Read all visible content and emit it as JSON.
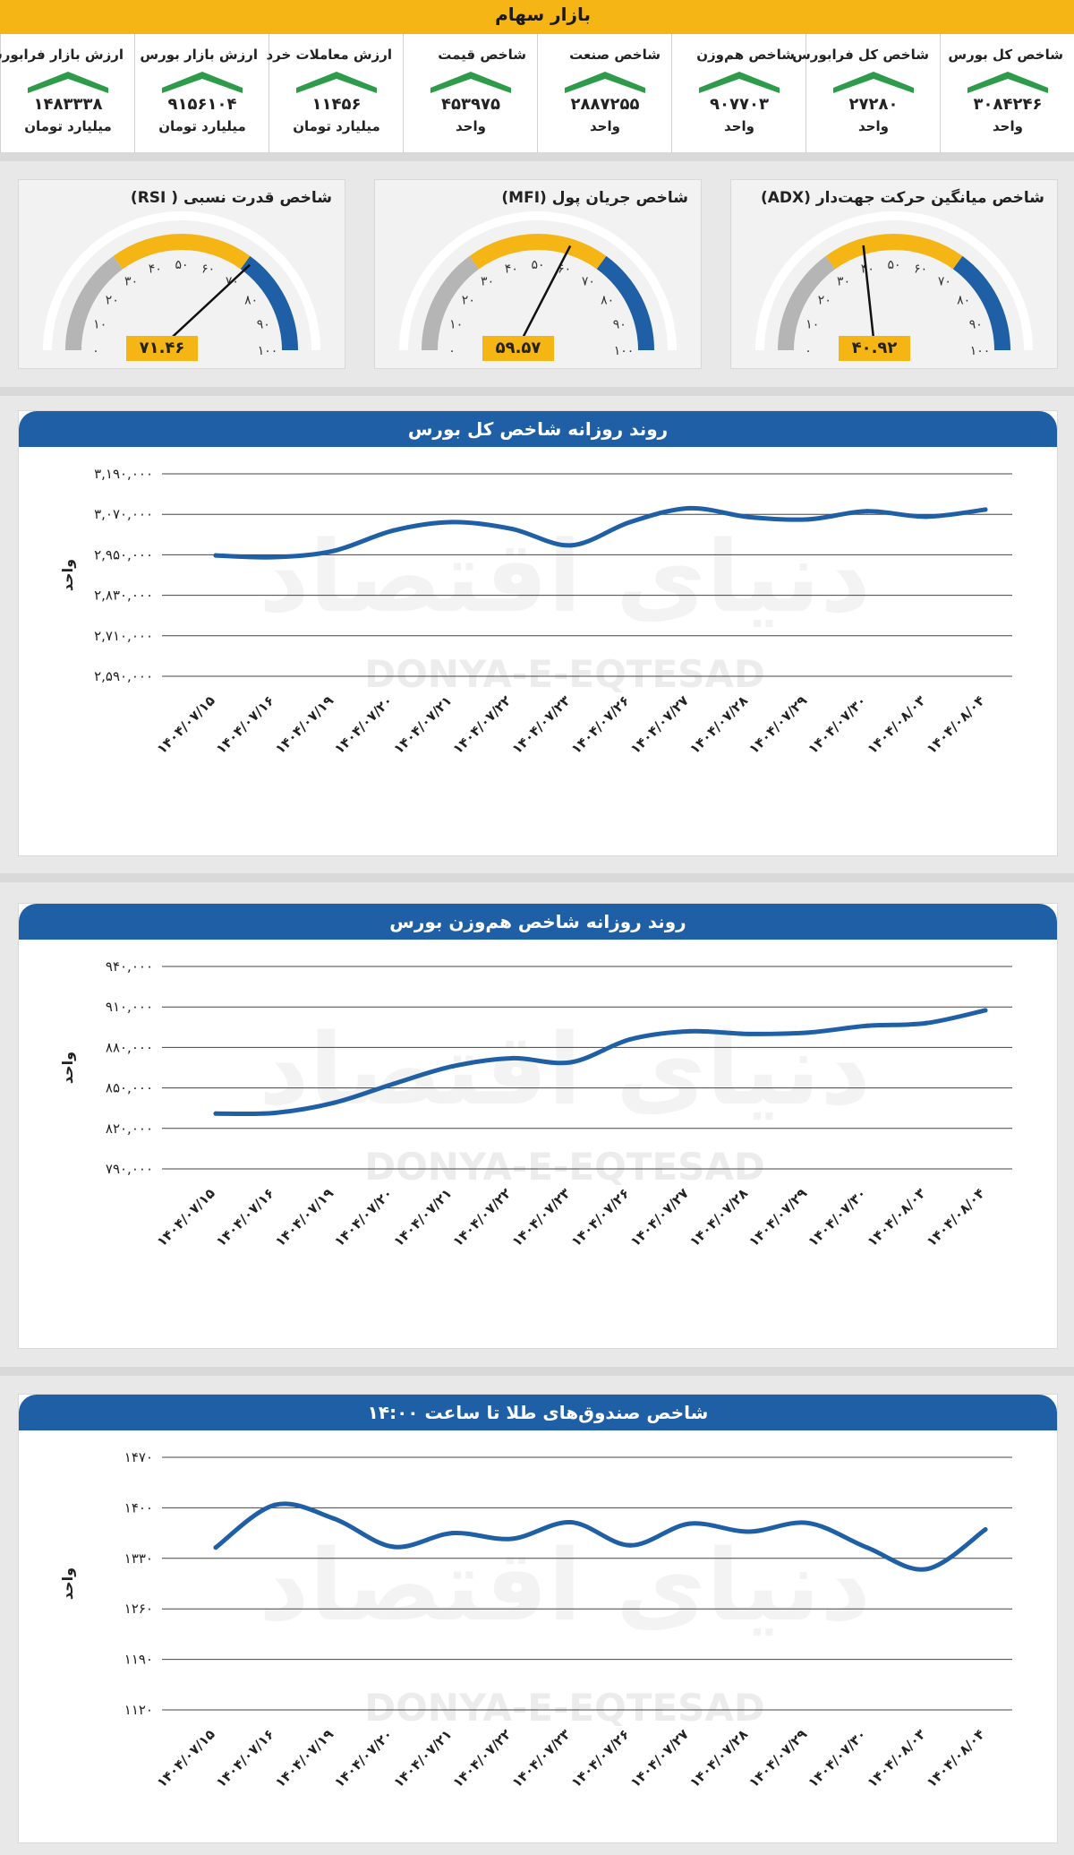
{
  "banner": {
    "title": "بازار سهام"
  },
  "indices": [
    {
      "label": "ارزش بازار فرابورس",
      "value": "۱۴۸۳۳۳۸",
      "unit": "میلیارد تومان"
    },
    {
      "label": "ارزش بازار بورس",
      "value": "۹۱۵۶۱۰۴",
      "unit": "میلیارد تومان"
    },
    {
      "label": "ارزش معاملات خرد",
      "value": "۱۱۴۵۶",
      "unit": "میلیارد تومان"
    },
    {
      "label": "شاخص قیمت",
      "value": "۴۵۳۹۷۵",
      "unit": "واحد"
    },
    {
      "label": "شاخص صنعت",
      "value": "۲۸۸۷۲۵۵",
      "unit": "واحد"
    },
    {
      "label": "شاخص هم‌وزن",
      "value": "۹۰۷۷۰۳",
      "unit": "واحد"
    },
    {
      "label": "شاخص کل فرابورس",
      "value": "۲۷۲۸۰",
      "unit": "واحد"
    },
    {
      "label": "شاخص کل بورس",
      "value": "۳۰۸۴۲۴۶",
      "unit": "واحد"
    }
  ],
  "gauges": [
    {
      "title": "شاخص قدرت نسبی ( RSI)",
      "value": 71.46,
      "value_label": "۷۱.۴۶"
    },
    {
      "title": "شاخص جریان پول (MFI)",
      "value": 59.57,
      "value_label": "۵۹.۵۷"
    },
    {
      "title": "شاخص میانگین حرکت جهت‌دار (ADX)",
      "value": 40.92,
      "value_label": "۴۰.۹۲"
    }
  ],
  "gauge_ticks": [
    "۰",
    "۱۰",
    "۲۰",
    "۳۰",
    "۴۰",
    "۵۰",
    "۶۰",
    "۷۰",
    "۸۰",
    "۹۰",
    "۱۰۰"
  ],
  "watermark": {
    "latin": "DONYA-E-EQTESAD",
    "persian": "دنیای اقتصاد"
  },
  "colors": {
    "accent": "#f4b515",
    "blue": "#1f5fa6",
    "green": "#2e9b4a",
    "gray": "#b5b5b5"
  },
  "chart_data": [
    {
      "type": "line",
      "title": "روند روزانه شاخص کل بورس",
      "ylabel": "واحد",
      "ylim": [
        2590000,
        3190000
      ],
      "yticks": [
        "۳,۱۹۰,۰۰۰",
        "۳,۰۷۰,۰۰۰",
        "۲,۹۵۰,۰۰۰",
        "۲,۸۳۰,۰۰۰",
        "۲,۷۱۰,۰۰۰",
        "۲,۵۹۰,۰۰۰"
      ],
      "ytick_values": [
        3190000,
        3070000,
        2950000,
        2830000,
        2710000,
        2590000
      ],
      "categories": [
        "۱۴۰۴/۰۷/۱۵",
        "۱۴۰۴/۰۷/۱۶",
        "۱۴۰۴/۰۷/۱۹",
        "۱۴۰۴/۰۷/۲۰",
        "۱۴۰۴/۰۷/۲۱",
        "۱۴۰۴/۰۷/۲۲",
        "۱۴۰۴/۰۷/۲۳",
        "۱۴۰۴/۰۷/۲۶",
        "۱۴۰۴/۰۷/۲۷",
        "۱۴۰۴/۰۷/۲۸",
        "۱۴۰۴/۰۷/۲۹",
        "۱۴۰۴/۰۷/۳۰",
        "۱۴۰۴/۰۸/۰۳",
        "۱۴۰۴/۰۸/۰۴"
      ],
      "values": [
        2948000,
        2943000,
        2962000,
        3022000,
        3047000,
        3027000,
        2978000,
        3047000,
        3088000,
        3062000,
        3055000,
        3079000,
        3063000,
        3084000
      ]
    },
    {
      "type": "line",
      "title": "روند روزانه شاخص هم‌وزن بورس",
      "ylabel": "واحد",
      "ylim": [
        790000,
        940000
      ],
      "yticks": [
        "۹۴۰,۰۰۰",
        "۹۱۰,۰۰۰",
        "۸۸۰,۰۰۰",
        "۸۵۰,۰۰۰",
        "۸۲۰,۰۰۰",
        "۷۹۰,۰۰۰"
      ],
      "ytick_values": [
        940000,
        910000,
        880000,
        850000,
        820000,
        790000
      ],
      "categories": [
        "۱۴۰۴/۰۷/۱۵",
        "۱۴۰۴/۰۷/۱۶",
        "۱۴۰۴/۰۷/۱۹",
        "۱۴۰۴/۰۷/۲۰",
        "۱۴۰۴/۰۷/۲۱",
        "۱۴۰۴/۰۷/۲۲",
        "۱۴۰۴/۰۷/۲۳",
        "۱۴۰۴/۰۷/۲۶",
        "۱۴۰۴/۰۷/۲۷",
        "۱۴۰۴/۰۷/۲۸",
        "۱۴۰۴/۰۷/۲۹",
        "۱۴۰۴/۰۷/۳۰",
        "۱۴۰۴/۰۸/۰۳",
        "۱۴۰۴/۰۸/۰۴"
      ],
      "values": [
        831000,
        831500,
        839000,
        853000,
        866000,
        872000,
        869000,
        886000,
        892000,
        890000,
        891000,
        896000,
        898000,
        907500
      ]
    },
    {
      "type": "line",
      "title": "شاخص صندوق‌های طلا تا ساعت ۱۴:۰۰",
      "ylabel": "واحد",
      "ylim": [
        1120,
        1470
      ],
      "yticks": [
        "۱۴۷۰",
        "۱۴۰۰",
        "۱۳۳۰",
        "۱۲۶۰",
        "۱۱۹۰",
        "۱۱۲۰"
      ],
      "ytick_values": [
        1470,
        1400,
        1330,
        1260,
        1190,
        1120
      ],
      "categories": [
        "۱۴۰۴/۰۷/۱۵",
        "۱۴۰۴/۰۷/۱۶",
        "۱۴۰۴/۰۷/۱۹",
        "۱۴۰۴/۰۷/۲۰",
        "۱۴۰۴/۰۷/۲۱",
        "۱۴۰۴/۰۷/۲۲",
        "۱۴۰۴/۰۷/۲۳",
        "۱۴۰۴/۰۷/۲۶",
        "۱۴۰۴/۰۷/۲۷",
        "۱۴۰۴/۰۷/۲۸",
        "۱۴۰۴/۰۷/۲۹",
        "۱۴۰۴/۰۷/۳۰",
        "۱۴۰۴/۰۸/۰۳",
        "۱۴۰۴/۰۸/۰۴"
      ],
      "values": [
        1345,
        1404,
        1385,
        1346,
        1365,
        1357,
        1380,
        1348,
        1378,
        1367,
        1379,
        1345,
        1315,
        1370
      ]
    }
  ]
}
